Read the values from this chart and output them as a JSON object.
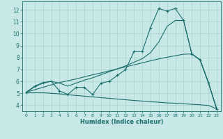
{
  "xlabel": "Humidex (Indice chaleur)",
  "bg_color": "#c8e8e8",
  "line_color": "#1a6e6a",
  "grid_color": "#aad0cc",
  "xlim": [
    -0.5,
    23.5
  ],
  "ylim": [
    3.5,
    12.7
  ],
  "yticks": [
    4,
    5,
    6,
    7,
    8,
    9,
    10,
    11,
    12
  ],
  "xticks": [
    0,
    1,
    2,
    3,
    4,
    5,
    6,
    7,
    8,
    9,
    10,
    11,
    12,
    13,
    14,
    15,
    16,
    17,
    18,
    19,
    20,
    21,
    22,
    23
  ],
  "curve_marked_x": [
    0,
    1,
    2,
    3,
    4,
    5,
    6,
    7,
    8,
    9,
    10,
    11,
    12,
    13,
    14,
    15,
    16,
    17,
    18,
    19,
    20,
    21,
    22,
    23
  ],
  "curve_marked_y": [
    5.1,
    5.6,
    5.9,
    6.0,
    5.2,
    4.9,
    5.5,
    5.5,
    4.9,
    5.85,
    6.0,
    6.5,
    7.0,
    8.5,
    8.5,
    10.5,
    12.1,
    11.9,
    12.1,
    11.1,
    8.3,
    7.8,
    5.9,
    3.7
  ],
  "curve_upper_x": [
    0,
    1,
    2,
    3,
    4,
    5,
    6,
    7,
    8,
    9,
    10,
    11,
    12,
    13,
    14,
    15,
    16,
    17,
    18,
    19,
    20,
    21,
    22,
    23
  ],
  "curve_upper_y": [
    5.1,
    5.55,
    5.85,
    6.0,
    5.85,
    5.6,
    5.85,
    6.1,
    6.3,
    6.55,
    6.8,
    7.05,
    7.3,
    7.6,
    7.9,
    8.4,
    9.3,
    10.6,
    11.1,
    11.1,
    8.3,
    7.8,
    5.9,
    3.7
  ],
  "curve_lower_x": [
    0,
    1,
    2,
    3,
    4,
    5,
    6,
    7,
    8,
    9,
    10,
    11,
    12,
    13,
    14,
    15,
    16,
    17,
    18,
    19,
    20,
    21,
    22,
    23
  ],
  "curve_lower_y": [
    5.1,
    5.3,
    5.5,
    5.7,
    5.9,
    6.05,
    6.2,
    6.38,
    6.55,
    6.7,
    6.88,
    7.05,
    7.22,
    7.38,
    7.55,
    7.72,
    7.88,
    8.02,
    8.15,
    8.27,
    8.3,
    7.8,
    5.9,
    3.7
  ],
  "curve_flat_x": [
    0,
    1,
    2,
    3,
    4,
    5,
    6,
    7,
    8,
    9,
    10,
    11,
    12,
    13,
    14,
    15,
    16,
    17,
    18,
    19,
    20,
    21,
    22,
    23
  ],
  "curve_flat_y": [
    5.05,
    5.05,
    5.05,
    5.0,
    4.95,
    4.88,
    4.82,
    4.76,
    4.7,
    4.64,
    4.58,
    4.52,
    4.46,
    4.4,
    4.35,
    4.3,
    4.25,
    4.2,
    4.16,
    4.12,
    4.08,
    4.04,
    3.98,
    3.7
  ]
}
